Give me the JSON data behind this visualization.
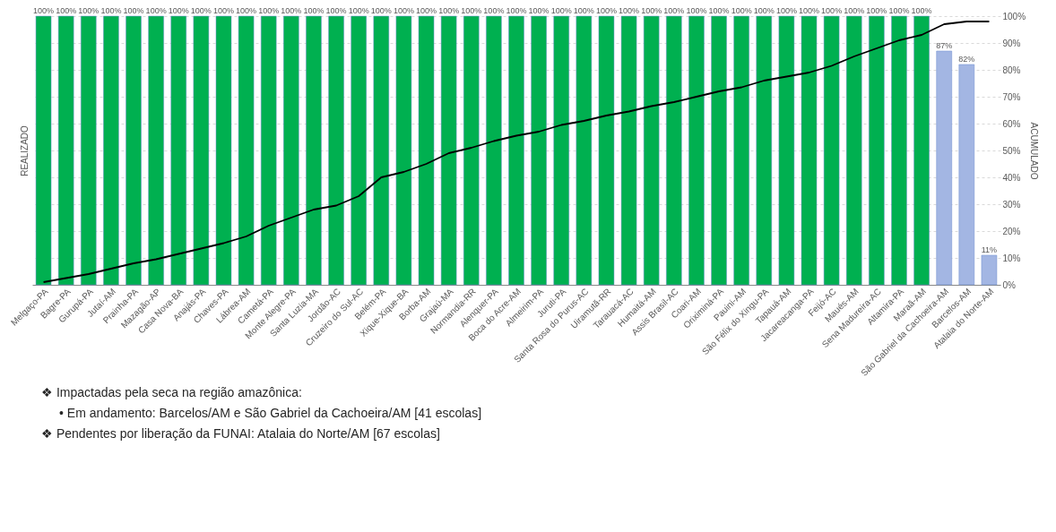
{
  "chart_data": {
    "type": "bar",
    "categories": [
      "Melgaço-PA",
      "Bagre-PA",
      "Gurupá-PA",
      "Jutaí-AM",
      "Prainha-PA",
      "Mazagão-AP",
      "Casa Nova-BA",
      "Anajás-PA",
      "Chaves-PA",
      "Lábrea-AM",
      "Cametá-PA",
      "Monte Alegre-PA",
      "Santa Luzia-MA",
      "Jordão-AC",
      "Cruzeiro do Sul-AC",
      "Belém-PA",
      "Xique-Xique-BA",
      "Borba-AM",
      "Grajaú-MA",
      "Normandia-RR",
      "Alenquer-PA",
      "Boca do Acre-AM",
      "Almeirim-PA",
      "Juruti-PA",
      "Santa Rosa do Purus-AC",
      "Uiramutã-RR",
      "Tarauacá-AC",
      "Humaitá-AM",
      "Assis Brasil-AC",
      "Coari-AM",
      "Oriximiná-PA",
      "Pauini-AM",
      "São Félix do Xingu-PA",
      "Tapauá-AM",
      "Jacareacanga-PA",
      "Feijó-AC",
      "Maués-AM",
      "Sena Madureira-AC",
      "Altamira-PA",
      "Maraã-AM",
      "São Gabriel da Cachoeira-AM",
      "Barcelos-AM",
      "Atalaia do Norte-AM"
    ],
    "ylabel": "REALIZADO",
    "y2label": "ACUMULADO",
    "ylim": [
      0,
      100
    ],
    "y2lim": [
      0,
      100
    ],
    "y2ticks": [
      {
        "value": 0,
        "label": "0%"
      },
      {
        "value": 10,
        "label": "10%"
      },
      {
        "value": 20,
        "label": "20%"
      },
      {
        "value": 30,
        "label": "30%"
      },
      {
        "value": 40,
        "label": "40%"
      },
      {
        "value": 50,
        "label": "50%"
      },
      {
        "value": 60,
        "label": "60%"
      },
      {
        "value": 70,
        "label": "70%"
      },
      {
        "value": 80,
        "label": "80%"
      },
      {
        "value": 90,
        "label": "90%"
      },
      {
        "value": 100,
        "label": "100%"
      }
    ],
    "grid": "y2",
    "series": [
      {
        "values": [
          100,
          100,
          100,
          100,
          100,
          100,
          100,
          100,
          100,
          100,
          100,
          100,
          100,
          100,
          100,
          100,
          100,
          100,
          100,
          100,
          100,
          100,
          100,
          100,
          100,
          100,
          100,
          100,
          100,
          100,
          100,
          100,
          100,
          100,
          100,
          100,
          100,
          100,
          100,
          100,
          87,
          82,
          11
        ],
        "colors": [
          "#00b050",
          "#00b050",
          "#00b050",
          "#00b050",
          "#00b050",
          "#00b050",
          "#00b050",
          "#00b050",
          "#00b050",
          "#00b050",
          "#00b050",
          "#00b050",
          "#00b050",
          "#00b050",
          "#00b050",
          "#00b050",
          "#00b050",
          "#00b050",
          "#00b050",
          "#00b050",
          "#00b050",
          "#00b050",
          "#00b050",
          "#00b050",
          "#00b050",
          "#00b050",
          "#00b050",
          "#00b050",
          "#00b050",
          "#00b050",
          "#00b050",
          "#00b050",
          "#00b050",
          "#00b050",
          "#00b050",
          "#00b050",
          "#00b050",
          "#00b050",
          "#00b050",
          "#00b050",
          "#a3b6e3",
          "#a3b6e3",
          "#a3b6e3"
        ],
        "value_labels": [
          "100%",
          "100%",
          "100%",
          "100%",
          "100%",
          "100%",
          "100%",
          "100%",
          "100%",
          "100%",
          "100%",
          "100%",
          "100%",
          "100%",
          "100%",
          "100%",
          "100%",
          "100%",
          "100%",
          "100%",
          "100%",
          "100%",
          "100%",
          "100%",
          "100%",
          "100%",
          "100%",
          "100%",
          "100%",
          "100%",
          "100%",
          "100%",
          "100%",
          "100%",
          "100%",
          "100%",
          "100%",
          "100%",
          "100%",
          "100%",
          "87%",
          "82%",
          "11%"
        ]
      },
      {
        "type": "line",
        "axis": "y2",
        "color": "#000000",
        "marker": "none",
        "line_style": "solid",
        "values": [
          1,
          2.5,
          4,
          6,
          8,
          9.5,
          11.5,
          13.5,
          15.5,
          18,
          22,
          25,
          28,
          29.5,
          33,
          40,
          42,
          45,
          49,
          51,
          53.5,
          55.5,
          57,
          59.5,
          61,
          63,
          64.5,
          66.5,
          68,
          70,
          72,
          73.5,
          76,
          77.5,
          79,
          81.5,
          85,
          88,
          91,
          93,
          97,
          98,
          98
        ]
      }
    ],
    "annotations": [
      "❖  Impactadas pela seca na região amazônica:",
      "•  Em andamento: Barcelos/AM e São Gabriel da Cachoeira/AM [41 escolas]",
      "❖  Pendentes por liberação da FUNAI:  Atalaia do Norte/AM [67 escolas]"
    ]
  }
}
